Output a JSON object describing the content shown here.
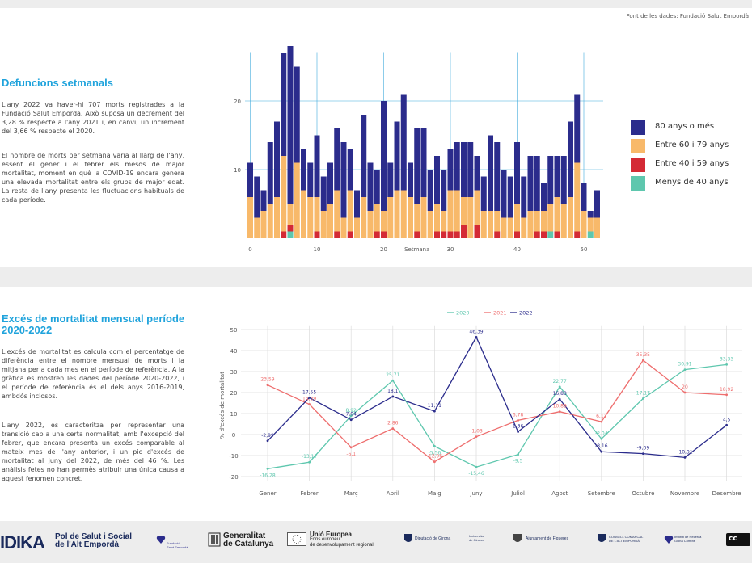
{
  "source": "Font de les dades: Fundació Salut Empordà",
  "section1": {
    "title": "Defuncions setmanals",
    "p1": "L'any 2022 va haver-hi 707 morts registrades a la Fundació Salut Empordà. Això suposa un decrement del 3,28 % respecte a l'any 2021 i, en canvi, un increment del 3,66 % respecte el 2020.",
    "p2": "El nombre de morts per setmana varia al llarg de l'any, essent el gener i el febrer els mesos de major mortalitat, moment en què la COVID-19 encara genera una elevada mortalitat entre els grups de major edat. La resta de l'any presenta les fluctuacions habituals de cada període."
  },
  "section2": {
    "title": "Excés de mortalitat mensual període 2020-2022",
    "p1": "L'excés de mortalitat es calcula com el percentatge de diferència entre el nombre mensual de morts i la mitjana per a cada mes en el període de referència. A la gràfica es mostren les dades del període 2020-2022, i el període de referència és el dels anys 2016-2019, ambdós inclosos.",
    "p2": "L'any 2022, es caracteritza per representar una transició cap a una certa normalitat, amb l'excepció del febrer, que encara presenta un excés comparable al mateix mes de l'any anterior, i un pic d'excés de mortalitat al juny del 2022, de més del 46 %. Les anàlisis fetes no han permès atribuir una única causa a aquest fenomen concret."
  },
  "footer": {
    "brand": "IDIKA",
    "pol": "Pol de Salut i Social",
    "pol2": "de l'Alt Empordà",
    "fundacio": "Fundació",
    "fundacio2": "Salut Empordà",
    "generalitat": "Generalitat",
    "generalitat2": "de Catalunya",
    "ue": "Unió Europea",
    "ue2": "Fons europeu",
    "ue3": "de desenvolupament regional",
    "diputacio": "Diputació de Girona",
    "udg": "Universitat",
    "udg2": "de Girona",
    "ajuntament": "Ajuntament de Figueres",
    "consell": "CONSELL COMARCAL",
    "consell2": "DE L'ALT EMPORDÀ",
    "institut": "Institut de Recerca",
    "institut2": "Glòria Compte",
    "cc": "cc"
  },
  "chart_data": [
    {
      "type": "bar",
      "stacked": true,
      "xlabel": "Setmana",
      "ylabel": "",
      "xticks": [
        0,
        10,
        20,
        30,
        40,
        50
      ],
      "yticks": [
        10,
        20
      ],
      "ylim": [
        0,
        27
      ],
      "x": [
        0,
        1,
        2,
        3,
        4,
        5,
        6,
        7,
        8,
        9,
        10,
        11,
        12,
        13,
        14,
        15,
        16,
        17,
        18,
        19,
        20,
        21,
        22,
        23,
        24,
        25,
        26,
        27,
        28,
        29,
        30,
        31,
        32,
        33,
        34,
        35,
        36,
        37,
        38,
        39,
        40,
        41,
        42,
        43,
        44,
        45,
        46,
        47,
        48,
        49,
        50,
        51,
        52
      ],
      "legend_position": "right",
      "colors": {
        "80 anys o més": "#2b2c8c",
        "Entre 60 i 79 anys": "#f8b96a",
        "Entre 40 i 59 anys": "#d42a35",
        "Menys de 40 anys": "#5ec7ae"
      },
      "series": [
        {
          "name": "Menys de 40 anys",
          "values": [
            0,
            0,
            0,
            0,
            0,
            0,
            1,
            0,
            0,
            0,
            0,
            0,
            0,
            0,
            0,
            0,
            0,
            0,
            0,
            0,
            0,
            0,
            0,
            0,
            0,
            0,
            0,
            0,
            0,
            0,
            0,
            0,
            0,
            0,
            0,
            0,
            0,
            0,
            0,
            0,
            0,
            0,
            0,
            0,
            0,
            1,
            0,
            0,
            0,
            0,
            0,
            1,
            0
          ]
        },
        {
          "name": "Entre 40 i 59 anys",
          "values": [
            0,
            0,
            0,
            0,
            0,
            1,
            1,
            0,
            0,
            0,
            1,
            0,
            0,
            1,
            0,
            1,
            0,
            0,
            0,
            1,
            1,
            0,
            0,
            0,
            0,
            1,
            0,
            0,
            1,
            1,
            1,
            1,
            2,
            0,
            2,
            0,
            0,
            1,
            0,
            0,
            1,
            0,
            0,
            1,
            1,
            0,
            1,
            0,
            0,
            1,
            0,
            0,
            0
          ]
        },
        {
          "name": "Entre 60 i 79 anys",
          "values": [
            6,
            3,
            4,
            5,
            6,
            11,
            3,
            11,
            7,
            6,
            5,
            4,
            5,
            6,
            3,
            6,
            3,
            6,
            4,
            4,
            3,
            6,
            7,
            7,
            6,
            4,
            6,
            4,
            4,
            3,
            6,
            6,
            4,
            6,
            5,
            4,
            4,
            3,
            3,
            3,
            4,
            3,
            4,
            3,
            3,
            4,
            5,
            5,
            6,
            10,
            4,
            2,
            3
          ]
        },
        {
          "name": "80 anys o més",
          "values": [
            5,
            6,
            3,
            9,
            11,
            15,
            23,
            14,
            6,
            5,
            9,
            5,
            6,
            9,
            11,
            6,
            4,
            12,
            7,
            5,
            16,
            5,
            10,
            14,
            5,
            11,
            10,
            6,
            7,
            6,
            6,
            7,
            8,
            8,
            5,
            5,
            11,
            10,
            7,
            6,
            9,
            6,
            8,
            8,
            4,
            7,
            6,
            7,
            11,
            10,
            4,
            1,
            4
          ]
        }
      ]
    },
    {
      "type": "line",
      "ylabel": "% d'excés de mortalitat",
      "xlabel": "",
      "categories": [
        "Gener",
        "Febrer",
        "Març",
        "Abril",
        "Maig",
        "Juny",
        "Juliol",
        "Agost",
        "Setembre",
        "Octubre",
        "Novembre",
        "Desembre"
      ],
      "yticks": [
        -20,
        -10,
        0,
        10,
        20,
        30,
        40,
        50
      ],
      "ylim": [
        -22,
        52
      ],
      "legend_position": "top",
      "series": [
        {
          "name": "2020",
          "color": "#5ec7ae",
          "values": [
            -16.28,
            -13.17,
            8.92,
            25.71,
            -5.56,
            -15.46,
            -9.5,
            22.77,
            -2.04,
            17.17,
            30.91,
            33.33
          ],
          "labels": [
            "-16,28",
            "-13,17",
            "8,92",
            "25,71",
            "-5,56",
            "-15,46",
            "-9,5",
            "22,77",
            "-2,04",
            "17,17",
            "30,91",
            "33,33"
          ]
        },
        {
          "name": "2021",
          "color": "#ee6e6e",
          "values": [
            23.59,
            14.39,
            -6.1,
            2.86,
            -12.96,
            -1.03,
            6.78,
            10.89,
            6.12,
            35.35,
            20,
            18.92
          ],
          "labels": [
            "23,59",
            "14,39",
            "-6,1",
            "2,86",
            "-12,96",
            "-1,03",
            "6,78",
            "10,89",
            "6,12",
            "35,35",
            "20",
            "18,92"
          ]
        },
        {
          "name": "2022",
          "color": "#2b2c8c",
          "values": [
            -2.99,
            17.55,
            7.04,
            18.1,
            11.11,
            46.39,
            1.36,
            16.83,
            -8.16,
            -9.09,
            -10.91,
            4.5
          ],
          "labels": [
            "-2,99",
            "17,55",
            "7,04",
            "18,1",
            "11,11",
            "46,39",
            "1,36",
            "16,83",
            "-8,16",
            "-9,09",
            "-10,91",
            "4,5"
          ]
        }
      ]
    }
  ]
}
